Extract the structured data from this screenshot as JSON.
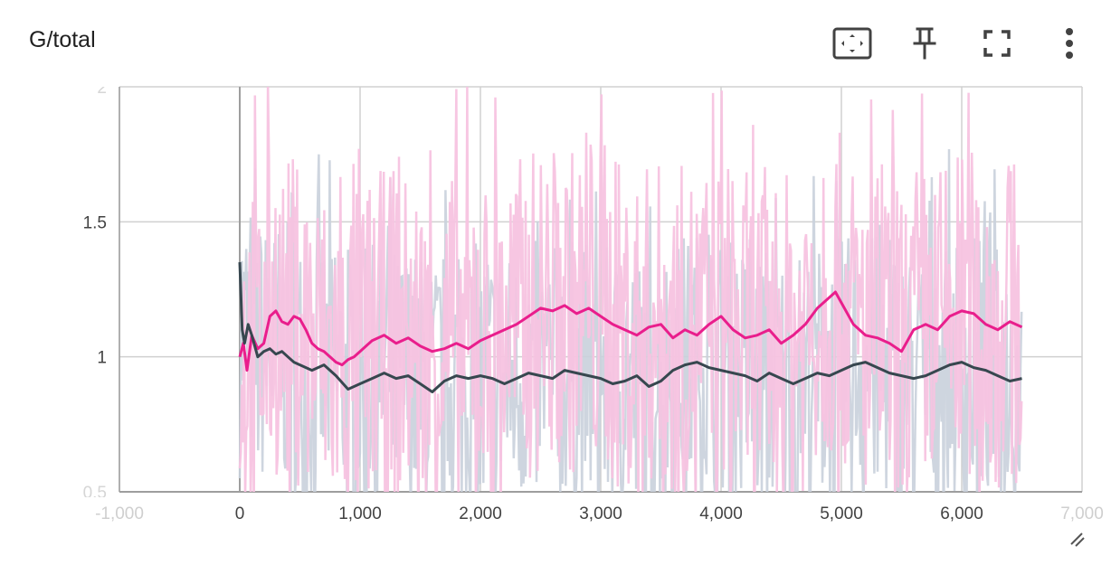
{
  "card": {
    "title": "G/total",
    "toolbar": [
      {
        "name": "fit-domain-button",
        "icon": "fit-to-screen-icon"
      },
      {
        "name": "pin-button",
        "icon": "pin-icon"
      },
      {
        "name": "fullscreen-button",
        "icon": "fullscreen-icon"
      },
      {
        "name": "more-options-button",
        "icon": "more-vert-icon"
      }
    ]
  },
  "chart_data": {
    "type": "line",
    "title": "G/total",
    "xlabel": "",
    "ylabel": "",
    "xlim": [
      -1000,
      7000
    ],
    "ylim": [
      0.5,
      2
    ],
    "x_ticks": [
      -1000,
      0,
      1000,
      2000,
      3000,
      4000,
      5000,
      6000,
      7000
    ],
    "x_tick_labels": [
      "-1,000",
      "0",
      "1,000",
      "2,000",
      "3,000",
      "4,000",
      "5,000",
      "6,000",
      "7,000"
    ],
    "y_ticks": [
      0.5,
      1,
      1.5,
      2
    ],
    "y_tick_labels": [
      "0.5",
      "1",
      "1.5",
      "2"
    ],
    "grid": true,
    "series": [
      {
        "color": "#e91e8c",
        "raw_color": "#f7c3e0",
        "x": [
          0,
          30,
          60,
          100,
          150,
          200,
          250,
          300,
          350,
          400,
          450,
          500,
          550,
          600,
          650,
          700,
          750,
          800,
          850,
          900,
          950,
          1000,
          1100,
          1200,
          1300,
          1400,
          1500,
          1600,
          1700,
          1800,
          1900,
          2000,
          2100,
          2200,
          2300,
          2400,
          2500,
          2600,
          2700,
          2800,
          2900,
          3000,
          3100,
          3200,
          3300,
          3400,
          3500,
          3600,
          3700,
          3800,
          3900,
          4000,
          4100,
          4200,
          4300,
          4400,
          4500,
          4600,
          4700,
          4800,
          4900,
          4950,
          5000,
          5100,
          5200,
          5300,
          5400,
          5500,
          5600,
          5700,
          5800,
          5900,
          6000,
          6100,
          6200,
          6300,
          6400,
          6500
        ],
        "values": [
          1.0,
          1.05,
          0.95,
          1.08,
          1.03,
          1.05,
          1.15,
          1.17,
          1.13,
          1.12,
          1.15,
          1.14,
          1.1,
          1.05,
          1.03,
          1.02,
          1.0,
          0.98,
          0.97,
          0.99,
          1.0,
          1.02,
          1.06,
          1.08,
          1.05,
          1.07,
          1.04,
          1.02,
          1.03,
          1.05,
          1.03,
          1.06,
          1.08,
          1.1,
          1.12,
          1.15,
          1.18,
          1.17,
          1.19,
          1.16,
          1.18,
          1.15,
          1.12,
          1.1,
          1.08,
          1.11,
          1.12,
          1.07,
          1.1,
          1.08,
          1.12,
          1.15,
          1.1,
          1.07,
          1.08,
          1.1,
          1.05,
          1.08,
          1.12,
          1.18,
          1.22,
          1.24,
          1.2,
          1.12,
          1.08,
          1.07,
          1.05,
          1.02,
          1.1,
          1.12,
          1.1,
          1.15,
          1.17,
          1.16,
          1.12,
          1.1,
          1.13,
          1.11
        ]
      },
      {
        "color": "#37474f",
        "raw_color": "#c9d0dc",
        "x": [
          0,
          20,
          40,
          70,
          100,
          150,
          200,
          250,
          300,
          350,
          400,
          450,
          500,
          600,
          700,
          800,
          900,
          1000,
          1100,
          1200,
          1300,
          1400,
          1500,
          1600,
          1700,
          1800,
          1900,
          2000,
          2100,
          2200,
          2300,
          2400,
          2500,
          2600,
          2700,
          2800,
          2900,
          3000,
          3100,
          3200,
          3300,
          3400,
          3500,
          3600,
          3700,
          3800,
          3900,
          4000,
          4100,
          4200,
          4300,
          4400,
          4500,
          4600,
          4700,
          4800,
          4900,
          5000,
          5100,
          5200,
          5300,
          5400,
          5500,
          5600,
          5700,
          5800,
          5900,
          6000,
          6100,
          6200,
          6300,
          6400,
          6500
        ],
        "values": [
          1.35,
          1.1,
          1.05,
          1.12,
          1.08,
          1.0,
          1.02,
          1.03,
          1.01,
          1.02,
          1.0,
          0.98,
          0.97,
          0.95,
          0.97,
          0.93,
          0.88,
          0.9,
          0.92,
          0.94,
          0.92,
          0.93,
          0.9,
          0.87,
          0.91,
          0.93,
          0.92,
          0.93,
          0.92,
          0.9,
          0.92,
          0.94,
          0.93,
          0.92,
          0.95,
          0.94,
          0.93,
          0.92,
          0.9,
          0.91,
          0.93,
          0.89,
          0.91,
          0.95,
          0.97,
          0.98,
          0.96,
          0.95,
          0.94,
          0.93,
          0.91,
          0.94,
          0.92,
          0.9,
          0.92,
          0.94,
          0.93,
          0.95,
          0.97,
          0.98,
          0.96,
          0.94,
          0.93,
          0.92,
          0.93,
          0.95,
          0.97,
          0.98,
          0.96,
          0.95,
          0.93,
          0.91,
          0.92
        ]
      }
    ]
  }
}
